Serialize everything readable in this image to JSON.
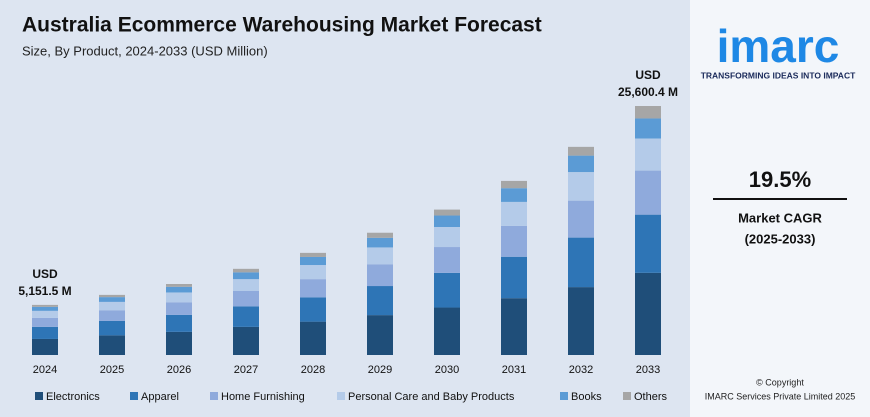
{
  "chart_data": {
    "type": "stacked_bar",
    "title": "Australia Ecommerce Warehousing Market Forecast",
    "subtitle": "Size, By Product, 2024-2033 (USD Million)",
    "categories": [
      "2024",
      "2025",
      "2026",
      "2027",
      "2028",
      "2029",
      "2030",
      "2031",
      "2032",
      "2033"
    ],
    "series": [
      {
        "name": "Electronics",
        "color": "#1f4e79",
        "values": [
          1650,
          2020,
          2380,
          2890,
          3430,
          4100,
          4880,
          5840,
          6980,
          8450
        ]
      },
      {
        "name": "Apparel",
        "color": "#2e75b6",
        "values": [
          1240,
          1480,
          1740,
          2110,
          2500,
          2990,
          3560,
          4260,
          5090,
          5980
        ]
      },
      {
        "name": "Home Furnishing",
        "color": "#8faadc",
        "values": [
          930,
          1100,
          1300,
          1580,
          1870,
          2240,
          2660,
          3180,
          3800,
          4530
        ]
      },
      {
        "name": "Personal Care and Baby Products",
        "color": "#b4cbe9",
        "values": [
          720,
          860,
          1010,
          1220,
          1450,
          1730,
          2060,
          2460,
          2940,
          3300
        ]
      },
      {
        "name": "Books",
        "color": "#5b9bd5",
        "values": [
          410,
          490,
          580,
          700,
          830,
          990,
          1180,
          1410,
          1690,
          2060
        ]
      },
      {
        "name": "Others",
        "color": "#a6a6a6",
        "values": [
          201.5,
          230,
          290,
          360,
          420,
          520,
          610,
          750,
          900,
          1280.4
        ]
      }
    ],
    "annotations": [
      [
        "USD",
        "5,151.5 M"
      ],
      [
        "USD",
        "25,600.4 M"
      ]
    ]
  },
  "brand": {
    "logo": "imarc",
    "tagline": "TRANSFORMING IDEAS INTO IMPACT",
    "cagr": "19.5%",
    "cagr_label": "Market CAGR",
    "cagr_period": "(2025-2033)",
    "copyright": "© Copyright",
    "company": "IMARC Services Private Limited 2025"
  }
}
